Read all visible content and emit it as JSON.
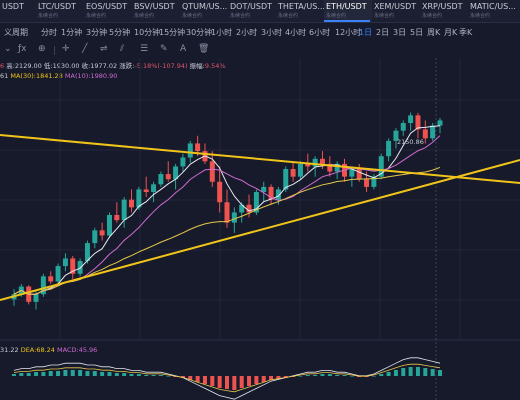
{
  "tabs": [
    {
      "pair": "USDT",
      "sub": ""
    },
    {
      "pair": "LTC/USDT",
      "sub": "永续合约"
    },
    {
      "pair": "EOS/USDT",
      "sub": "永续合约"
    },
    {
      "pair": "BSV/USDT",
      "sub": "永续合约"
    },
    {
      "pair": "QTUM/US...",
      "sub": "永续合约"
    },
    {
      "pair": "DOT/USDT",
      "sub": "永续合约"
    },
    {
      "pair": "THETA/US...",
      "sub": "永续合约"
    },
    {
      "pair": "ETH/USDT",
      "sub": "永续合约"
    },
    {
      "pair": "XEM/USDT",
      "sub": "永续合约"
    },
    {
      "pair": "XRP/USDT",
      "sub": "永续合约"
    },
    {
      "pair": "MATIC/US...",
      "sub": "永续合约"
    }
  ],
  "active_tab": "ETH/USDT",
  "toolbar": [
    "义周期",
    "分时",
    "1分钟",
    "3分钟",
    "5分钟",
    "10分钟",
    "15分钟",
    "30分钟",
    "1小时",
    "2小时",
    "3小时",
    "4小时",
    "6小时",
    "12小时",
    "1日",
    "2日",
    "3日",
    "5日",
    "周K",
    "月K",
    "季K"
  ],
  "active_period": "1日",
  "ohlc": {
    "open_frag": "6",
    "high_label": "高:",
    "high": "2129.00",
    "low_label": "低:",
    "low": "1930.00",
    "close_label": "收:",
    "close": "1977.02",
    "change_label": "涨跌:",
    "change": "-5.18%(-107.94)",
    "amp_label": "振幅:",
    "amp": "9.54%"
  },
  "ma": {
    "frag": "61",
    "ma30_label": "MA(30):",
    "ma30": "1841.28",
    "ma10_label": "MA(10):",
    "ma10": "1980.90"
  },
  "macd": {
    "dif_frag": "31.22",
    "dea_label": "DEA:",
    "dea": "68.24",
    "macd_label": "MACD:",
    "macd": "45.96"
  },
  "high_marker": "2150.86",
  "colors": {
    "up": "#26a69a",
    "down": "#ef5350",
    "trend": "#f0c419",
    "ma_yellow": "#e6c84a",
    "ma_purple": "#d06ad0"
  },
  "chart_data": {
    "type": "candlestick",
    "candles": [
      [
        1420,
        1460,
        1395,
        1440
      ],
      [
        1440,
        1480,
        1430,
        1470
      ],
      [
        1470,
        1475,
        1400,
        1410
      ],
      [
        1410,
        1450,
        1380,
        1440
      ],
      [
        1440,
        1520,
        1430,
        1510
      ],
      [
        1510,
        1530,
        1480,
        1490
      ],
      [
        1490,
        1560,
        1470,
        1550
      ],
      [
        1550,
        1600,
        1530,
        1580
      ],
      [
        1580,
        1590,
        1500,
        1520
      ],
      [
        1520,
        1580,
        1510,
        1570
      ],
      [
        1570,
        1650,
        1560,
        1640
      ],
      [
        1640,
        1700,
        1620,
        1690
      ],
      [
        1690,
        1720,
        1650,
        1670
      ],
      [
        1670,
        1760,
        1660,
        1750
      ],
      [
        1750,
        1800,
        1720,
        1730
      ],
      [
        1730,
        1820,
        1700,
        1810
      ],
      [
        1810,
        1850,
        1760,
        1780
      ],
      [
        1780,
        1860,
        1770,
        1850
      ],
      [
        1850,
        1900,
        1820,
        1840
      ],
      [
        1840,
        1880,
        1800,
        1870
      ],
      [
        1870,
        1920,
        1860,
        1910
      ],
      [
        1910,
        1960,
        1880,
        1890
      ],
      [
        1890,
        1950,
        1850,
        1940
      ],
      [
        1940,
        1990,
        1920,
        1975
      ],
      [
        1975,
        2040,
        1955,
        2030
      ],
      [
        2030,
        2060,
        1980,
        2000
      ],
      [
        2000,
        2030,
        1950,
        1960
      ],
      [
        1960,
        2000,
        1860,
        1880
      ],
      [
        1880,
        1940,
        1760,
        1800
      ],
      [
        1800,
        1850,
        1700,
        1720
      ],
      [
        1720,
        1780,
        1680,
        1760
      ],
      [
        1760,
        1800,
        1720,
        1790
      ],
      [
        1790,
        1830,
        1740,
        1760
      ],
      [
        1760,
        1850,
        1750,
        1840
      ],
      [
        1840,
        1880,
        1800,
        1860
      ],
      [
        1860,
        1870,
        1790,
        1810
      ],
      [
        1810,
        1860,
        1790,
        1850
      ],
      [
        1850,
        1940,
        1840,
        1930
      ],
      [
        1930,
        1960,
        1880,
        1900
      ],
      [
        1900,
        1960,
        1890,
        1950
      ],
      [
        1950,
        1990,
        1920,
        1940
      ],
      [
        1940,
        1980,
        1900,
        1970
      ],
      [
        1970,
        2000,
        1930,
        1950
      ],
      [
        1950,
        1980,
        1900,
        1920
      ],
      [
        1920,
        1960,
        1890,
        1950
      ],
      [
        1950,
        1970,
        1880,
        1900
      ],
      [
        1900,
        1940,
        1860,
        1930
      ],
      [
        1930,
        1950,
        1880,
        1890
      ],
      [
        1890,
        1920,
        1840,
        1860
      ],
      [
        1860,
        1910,
        1850,
        1900
      ],
      [
        1900,
        1990,
        1890,
        1980
      ],
      [
        1980,
        2050,
        1960,
        2040
      ],
      [
        2040,
        2090,
        2010,
        2080
      ],
      [
        2080,
        2120,
        2060,
        2110
      ],
      [
        2110,
        2151,
        2080,
        2140
      ],
      [
        2140,
        2150,
        2050,
        2085
      ],
      [
        2085,
        2120,
        2030,
        2050
      ],
      [
        2050,
        2110,
        2040,
        2100
      ],
      [
        2100,
        2130,
        2070,
        2120
      ]
    ]
  }
}
